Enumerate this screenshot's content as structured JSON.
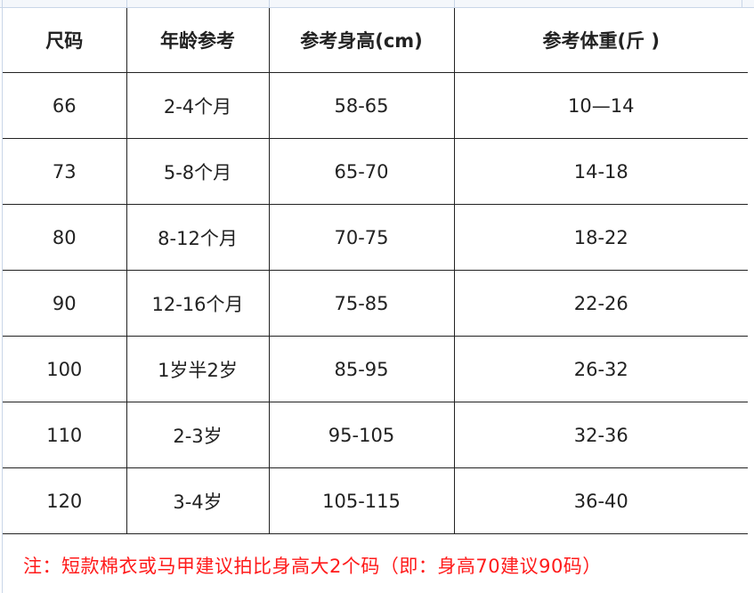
{
  "table": {
    "headers": [
      "尺码",
      "年龄参考",
      "参考身高(cm)",
      "参考体重(斤 )"
    ],
    "rows": [
      [
        "66",
        "2-4个月",
        "58-65",
        "10—14"
      ],
      [
        "73",
        "5-8个月",
        "65-70",
        "14-18"
      ],
      [
        "80",
        "8-12个月",
        "70-75",
        "18-22"
      ],
      [
        "90",
        "12-16个月",
        "75-85",
        "22-26"
      ],
      [
        "100",
        "1岁半2岁",
        "85-95",
        "26-32"
      ],
      [
        "110",
        "2-3岁",
        "95-105",
        "32-36"
      ],
      [
        "120",
        "3-4岁",
        "105-115",
        "36-40"
      ]
    ]
  },
  "note": "注：短款棉衣或马甲建议拍比身高大2个码（即：身高70建议90码）",
  "colors": {
    "note": "#ff1a1a",
    "grid": "#222222",
    "sheet_gridline": "#c9d6e8"
  }
}
